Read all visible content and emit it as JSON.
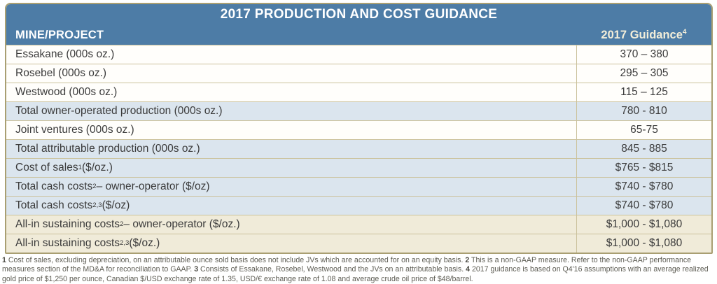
{
  "title": "2017 PRODUCTION AND COST GUIDANCE",
  "columns": {
    "mine": "MINE/PROJECT",
    "guidance": "2017 Guidance",
    "guidance_sup": "4"
  },
  "table": {
    "rows": [
      {
        "pre": "Essakane (000s oz.)",
        "sup": "",
        "post": "",
        "value": "370 – 380",
        "variant": "white"
      },
      {
        "pre": "Rosebel (000s oz.)",
        "sup": "",
        "post": "",
        "value": "295 – 305",
        "variant": "white"
      },
      {
        "pre": "Westwood (000s oz.)",
        "sup": "",
        "post": "",
        "value": "115 – 125",
        "variant": "white"
      },
      {
        "pre": "Total owner-operated production (000s oz.)",
        "sup": "",
        "post": "",
        "value": "780 - 810",
        "variant": "blue"
      },
      {
        "pre": "Joint ventures (000s oz.)",
        "sup": "",
        "post": "",
        "value": "65-75",
        "variant": "white"
      },
      {
        "pre": "Total attributable production (000s oz.)",
        "sup": "",
        "post": "",
        "value": "845 - 885",
        "variant": "blue"
      },
      {
        "pre": "Cost of sales",
        "sup": "1",
        "post": " ($/oz.)",
        "value": "$765 - $815",
        "variant": "blue"
      },
      {
        "pre": "Total cash costs",
        "sup": "2",
        "post": " – owner-operator ($/oz)",
        "value": "$740 - $780",
        "variant": "blue"
      },
      {
        "pre": "Total cash costs",
        "sup": "2,3",
        "post": " ($/oz)",
        "value": "$740 - $780",
        "variant": "blue"
      },
      {
        "pre": "All-in sustaining costs",
        "sup": "2",
        "post": " – owner-operator ($/oz.)",
        "value": "$1,000 - $1,080",
        "variant": "tan"
      },
      {
        "pre": "All-in sustaining costs",
        "sup": "2,3",
        "post": " ($/oz.)",
        "value": "$1,000 - $1,080",
        "variant": "tan"
      }
    ]
  },
  "footnotes": [
    {
      "marker": "1",
      "text": " Cost of sales, excluding depreciation, on an attributable ounce sold basis does not include JVs which are accounted for on an equity basis. "
    },
    {
      "marker": "2",
      "text": " This is a non-GAAP measure. Refer to the non-GAAP performance measures section of the MD&A for reconciliation to GAAP. "
    },
    {
      "marker": "3",
      "text": " Consists of Essakane, Rosebel, Westwood and the JVs on an attributable basis. "
    },
    {
      "marker": "4",
      "text": " 2017 guidance is based on Q4'16 assumptions with an average realized gold price of $1,250 per ounce, Canadian $/USD exchange rate of 1.35, USD/€ exchange rate of 1.08 and average crude oil price of $48/barrel."
    }
  ],
  "colors": {
    "header_blue": "#4d7ca6",
    "row_blue": "#dbe5ee",
    "row_tan": "#f0ebd9",
    "row_white": "#fffefb",
    "grid_line": "#cbc29c",
    "outer_border": "#a99f72",
    "guidance_header_text": "#f3eed9",
    "body_text": "#3b3b3b",
    "footnote_text": "#5d5c53"
  },
  "chart_data": {
    "type": "table",
    "title": "2017 PRODUCTION AND COST GUIDANCE",
    "columns": [
      "MINE/PROJECT",
      "2017 Guidance(4)"
    ],
    "rows": [
      [
        "Essakane (000s oz.)",
        "370 – 380"
      ],
      [
        "Rosebel (000s oz.)",
        "295 – 305"
      ],
      [
        "Westwood (000s oz.)",
        "115 – 125"
      ],
      [
        "Total owner-operated production (000s oz.)",
        "780 - 810"
      ],
      [
        "Joint ventures (000s oz.)",
        "65-75"
      ],
      [
        "Total attributable production (000s oz.)",
        "845 - 885"
      ],
      [
        "Cost of sales(1) ($/oz.)",
        "$765 - $815"
      ],
      [
        "Total cash costs(2) – owner-operator ($/oz)",
        "$740 - $780"
      ],
      [
        "Total cash costs(2,3) ($/oz)",
        "$740 - $780"
      ],
      [
        "All-in sustaining costs(2) – owner-operator ($/oz.)",
        "$1,000 - $1,080"
      ],
      [
        "All-in sustaining costs(2,3) ($/oz.)",
        "$1,000 - $1,080"
      ]
    ]
  }
}
